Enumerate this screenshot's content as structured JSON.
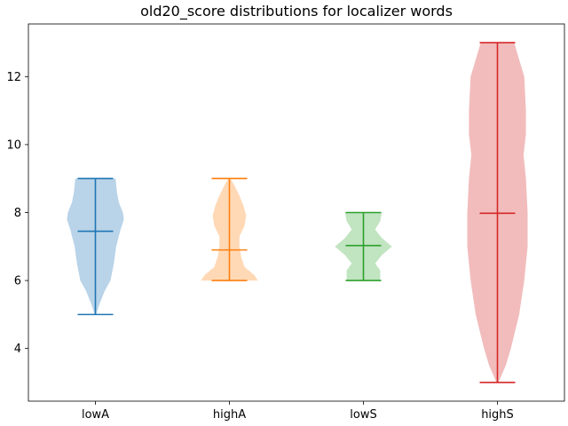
{
  "chart_data": {
    "type": "violin",
    "title": "old20_score distributions for localizer words",
    "xlabel": "",
    "ylabel": "",
    "categories": [
      "lowA",
      "highA",
      "lowS",
      "highS"
    ],
    "ylim": [
      2.45,
      13.55
    ],
    "yticks": [
      4,
      6,
      8,
      10,
      12
    ],
    "grid": false,
    "series": [
      {
        "category": "lowA",
        "color": "#1f77b4",
        "fill": "#b9d3e8",
        "min": 5.0,
        "max": 9.0,
        "mean": 7.45,
        "density": [
          [
            5.0,
            0.02
          ],
          [
            5.3,
            0.12
          ],
          [
            5.7,
            0.28
          ],
          [
            6.0,
            0.45
          ],
          [
            6.5,
            0.55
          ],
          [
            7.0,
            0.62
          ],
          [
            7.5,
            0.75
          ],
          [
            7.8,
            0.85
          ],
          [
            8.0,
            0.82
          ],
          [
            8.3,
            0.7
          ],
          [
            8.6,
            0.64
          ],
          [
            9.0,
            0.6
          ]
        ]
      },
      {
        "category": "highA",
        "color": "#ff7f0e",
        "fill": "#ffd9b6",
        "min": 6.0,
        "max": 9.0,
        "mean": 6.9,
        "density": [
          [
            6.0,
            0.85
          ],
          [
            6.15,
            0.75
          ],
          [
            6.4,
            0.45
          ],
          [
            6.7,
            0.35
          ],
          [
            7.0,
            0.3
          ],
          [
            7.3,
            0.3
          ],
          [
            7.6,
            0.45
          ],
          [
            7.9,
            0.5
          ],
          [
            8.2,
            0.42
          ],
          [
            8.5,
            0.3
          ],
          [
            8.8,
            0.15
          ],
          [
            9.0,
            0.03
          ]
        ]
      },
      {
        "category": "lowS",
        "color": "#2ca02c",
        "fill": "#c1e4c1",
        "min": 6.0,
        "max": 8.0,
        "mean": 7.03,
        "density": [
          [
            6.0,
            0.5
          ],
          [
            6.3,
            0.5
          ],
          [
            6.5,
            0.35
          ],
          [
            6.75,
            0.55
          ],
          [
            7.0,
            0.85
          ],
          [
            7.25,
            0.55
          ],
          [
            7.5,
            0.35
          ],
          [
            7.75,
            0.5
          ],
          [
            8.0,
            0.55
          ]
        ]
      },
      {
        "category": "highS",
        "color": "#d62728",
        "fill": "#f2bcbc",
        "min": 3.0,
        "max": 13.0,
        "mean": 7.98,
        "density": [
          [
            3.0,
            0.03
          ],
          [
            3.5,
            0.25
          ],
          [
            4.0,
            0.4
          ],
          [
            5.0,
            0.65
          ],
          [
            6.0,
            0.8
          ],
          [
            7.0,
            0.9
          ],
          [
            8.0,
            0.9
          ],
          [
            9.0,
            0.85
          ],
          [
            9.7,
            0.78
          ],
          [
            10.3,
            0.85
          ],
          [
            11.0,
            0.85
          ],
          [
            12.0,
            0.8
          ],
          [
            12.5,
            0.65
          ],
          [
            13.0,
            0.5
          ]
        ]
      }
    ]
  }
}
